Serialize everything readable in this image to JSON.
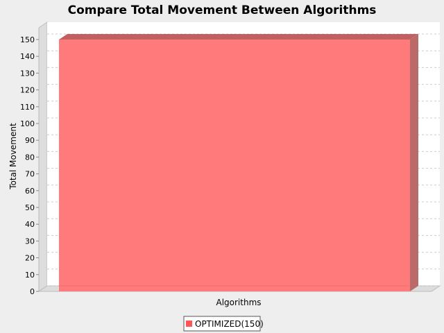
{
  "chart_data": {
    "type": "bar",
    "title": "Compare Total Movement Between Algorithms",
    "xlabel": "Algorithms",
    "ylabel": "Total Movement",
    "categories": [
      ""
    ],
    "series": [
      {
        "name": "OPTIMIZED(150)",
        "values": [
          150
        ],
        "color": "#ff5555"
      }
    ],
    "ylim": [
      0,
      155
    ],
    "yticks": [
      0,
      10,
      20,
      30,
      40,
      50,
      60,
      70,
      80,
      90,
      100,
      110,
      120,
      130,
      140,
      150
    ],
    "grid": true,
    "legend": "bottom-center",
    "three_d": true
  }
}
